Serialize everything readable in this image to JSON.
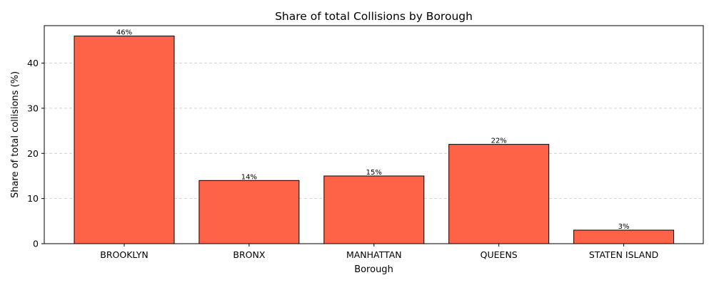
{
  "chart_data": {
    "type": "bar",
    "title": "Share of total Collisions by Borough",
    "xlabel": "Borough",
    "ylabel": "Share of total collisions (%)",
    "categories": [
      "BROOKLYN",
      "BRONX",
      "MANHATTAN",
      "QUEENS",
      "STATEN ISLAND"
    ],
    "values": [
      46,
      14,
      15,
      22,
      3
    ],
    "data_labels": [
      "46%",
      "14%",
      "15%",
      "22%",
      "3%"
    ],
    "ylim": [
      0,
      48.3
    ],
    "yticks": [
      0,
      10,
      20,
      30,
      40
    ],
    "grid": "y-dashed",
    "bar_color": "#ff6347",
    "edge_color": "#000000"
  }
}
